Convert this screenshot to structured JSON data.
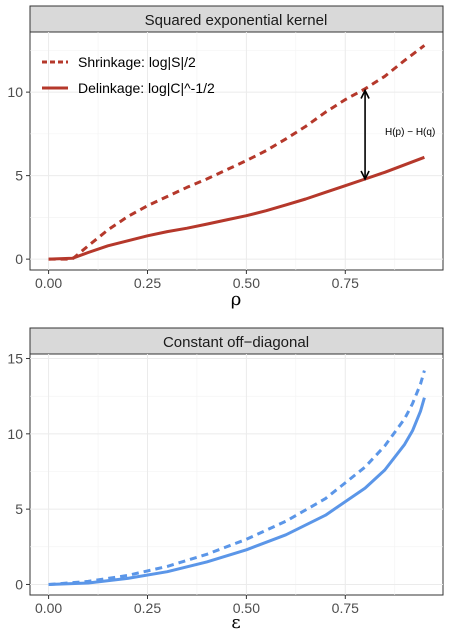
{
  "chart_data": [
    {
      "type": "line",
      "title": "Squared exponential kernel",
      "xlabel": "ρ",
      "ylabel": "",
      "xlim": [
        -0.047,
        0.997
      ],
      "ylim": [
        -0.65,
        13.6
      ],
      "xticks": [
        0,
        0.25,
        0.5,
        0.75
      ],
      "xtick_labels": [
        "0.00",
        "0.25",
        "0.50",
        "0.75"
      ],
      "yticks": [
        0,
        5,
        10
      ],
      "ytick_labels": [
        "0",
        "5",
        "10"
      ],
      "grid": true,
      "legend_position": "top-left",
      "series": [
        {
          "name": "Shrinkage: log|S|/2",
          "color": "#b5382b",
          "style": "dashed",
          "x": [
            0.0,
            0.06,
            0.1,
            0.15,
            0.2,
            0.25,
            0.3,
            0.35,
            0.4,
            0.45,
            0.5,
            0.55,
            0.6,
            0.65,
            0.7,
            0.75,
            0.8,
            0.85,
            0.9,
            0.95
          ],
          "y": [
            0.0,
            0.0,
            0.8,
            1.75,
            2.55,
            3.2,
            3.75,
            4.3,
            4.8,
            5.35,
            5.9,
            6.5,
            7.2,
            7.95,
            8.8,
            9.55,
            10.2,
            10.95,
            11.9,
            12.8
          ]
        },
        {
          "name": "Delinkage: log|C|^-1/2",
          "color": "#b5382b",
          "style": "solid",
          "x": [
            0.0,
            0.06,
            0.1,
            0.15,
            0.2,
            0.25,
            0.3,
            0.35,
            0.4,
            0.45,
            0.5,
            0.55,
            0.6,
            0.65,
            0.7,
            0.75,
            0.8,
            0.85,
            0.9,
            0.95
          ],
          "y": [
            0.0,
            0.05,
            0.4,
            0.8,
            1.1,
            1.4,
            1.65,
            1.85,
            2.1,
            2.35,
            2.6,
            2.9,
            3.25,
            3.6,
            4.0,
            4.4,
            4.8,
            5.2,
            5.65,
            6.1
          ]
        }
      ],
      "annotations": [
        {
          "text": "H(p) − H(q)",
          "x": 0.8,
          "y_from": 4.8,
          "y_to": 10.1
        }
      ]
    },
    {
      "type": "line",
      "title": "Constant off−diagonal",
      "xlabel": "ε",
      "ylabel": "",
      "xlim": [
        -0.047,
        0.997
      ],
      "ylim": [
        -0.7,
        15.3
      ],
      "xticks": [
        0,
        0.25,
        0.5,
        0.75
      ],
      "xtick_labels": [
        "0.00",
        "0.25",
        "0.50",
        "0.75"
      ],
      "yticks": [
        0,
        5,
        10,
        15
      ],
      "ytick_labels": [
        "0",
        "5",
        "10",
        "15"
      ],
      "grid": true,
      "series": [
        {
          "color": "#5b96e8",
          "style": "dashed",
          "x": [
            0.0,
            0.1,
            0.2,
            0.3,
            0.4,
            0.5,
            0.6,
            0.7,
            0.8,
            0.85,
            0.9,
            0.92,
            0.94,
            0.95
          ],
          "y": [
            0.0,
            0.2,
            0.6,
            1.2,
            2.0,
            3.0,
            4.2,
            5.7,
            7.8,
            9.2,
            11.0,
            12.0,
            13.3,
            14.2
          ]
        },
        {
          "color": "#5b96e8",
          "style": "solid",
          "x": [
            0.0,
            0.1,
            0.2,
            0.3,
            0.4,
            0.5,
            0.6,
            0.7,
            0.8,
            0.85,
            0.9,
            0.92,
            0.94,
            0.95
          ],
          "y": [
            0.0,
            0.1,
            0.4,
            0.85,
            1.5,
            2.3,
            3.3,
            4.6,
            6.4,
            7.6,
            9.3,
            10.2,
            11.5,
            12.4
          ]
        }
      ]
    }
  ]
}
